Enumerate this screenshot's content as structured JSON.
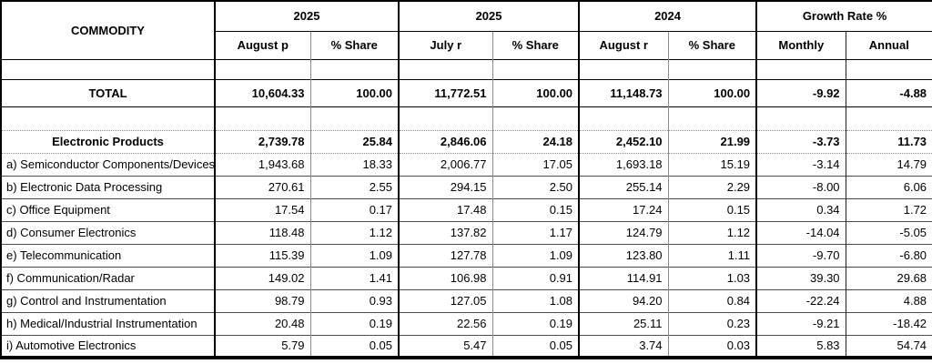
{
  "table": {
    "commodity_header": "COMMODITY",
    "column_groups": [
      {
        "label": "2025",
        "columns": [
          "August p",
          "% Share"
        ]
      },
      {
        "label": "2025",
        "columns": [
          "July r",
          "% Share"
        ]
      },
      {
        "label": "2024",
        "columns": [
          "August r",
          "% Share"
        ]
      },
      {
        "label": "Growth Rate %",
        "columns": [
          "Monthly",
          "Annual"
        ]
      }
    ],
    "rows": [
      {
        "type": "spacer",
        "label": "",
        "values": [
          "",
          "",
          "",
          "",
          "",
          "",
          "",
          ""
        ]
      },
      {
        "type": "total",
        "label": "TOTAL",
        "values": [
          "10,604.33",
          "100.00",
          "11,772.51",
          "100.00",
          "11,148.73",
          "100.00",
          "-9.92",
          "-4.88"
        ]
      },
      {
        "type": "spacer",
        "label": "",
        "values": [
          "",
          "",
          "",
          "",
          "",
          "",
          "",
          ""
        ]
      },
      {
        "type": "group",
        "label": "Electronic Products",
        "values": [
          "2,739.78",
          "25.84",
          "2,846.06",
          "24.18",
          "2,452.10",
          "21.99",
          "-3.73",
          "11.73"
        ]
      },
      {
        "type": "item",
        "label": "a) Semiconductor Components/Devices",
        "values": [
          "1,943.68",
          "18.33",
          "2,006.77",
          "17.05",
          "1,693.18",
          "15.19",
          "-3.14",
          "14.79"
        ]
      },
      {
        "type": "item",
        "label": "b) Electronic Data Processing",
        "values": [
          "270.61",
          "2.55",
          "294.15",
          "2.50",
          "255.14",
          "2.29",
          "-8.00",
          "6.06"
        ]
      },
      {
        "type": "item",
        "label": "c) Office Equipment",
        "values": [
          "17.54",
          "0.17",
          "17.48",
          "0.15",
          "17.24",
          "0.15",
          "0.34",
          "1.72"
        ]
      },
      {
        "type": "item",
        "label": "d) Consumer Electronics",
        "values": [
          "118.48",
          "1.12",
          "137.82",
          "1.17",
          "124.79",
          "1.12",
          "-14.04",
          "-5.05"
        ]
      },
      {
        "type": "item",
        "label": "e) Telecommunication",
        "values": [
          "115.39",
          "1.09",
          "127.78",
          "1.09",
          "123.80",
          "1.11",
          "-9.70",
          "-6.80"
        ]
      },
      {
        "type": "item",
        "label": "f) Communication/Radar",
        "values": [
          "149.02",
          "1.41",
          "106.98",
          "0.91",
          "114.91",
          "1.03",
          "39.30",
          "29.68"
        ]
      },
      {
        "type": "item",
        "label": "g) Control and Instrumentation",
        "values": [
          "98.79",
          "0.93",
          "127.05",
          "1.08",
          "94.20",
          "0.84",
          "-22.24",
          "4.88"
        ]
      },
      {
        "type": "item",
        "label": "h) Medical/Industrial Instrumentation",
        "values": [
          "20.48",
          "0.19",
          "22.56",
          "0.19",
          "25.11",
          "0.23",
          "-9.21",
          "-18.42"
        ]
      },
      {
        "type": "item",
        "label": "i) Automotive Electronics",
        "values": [
          "5.79",
          "0.05",
          "5.47",
          "0.05",
          "3.74",
          "0.03",
          "5.83",
          "54.74"
        ]
      }
    ]
  }
}
